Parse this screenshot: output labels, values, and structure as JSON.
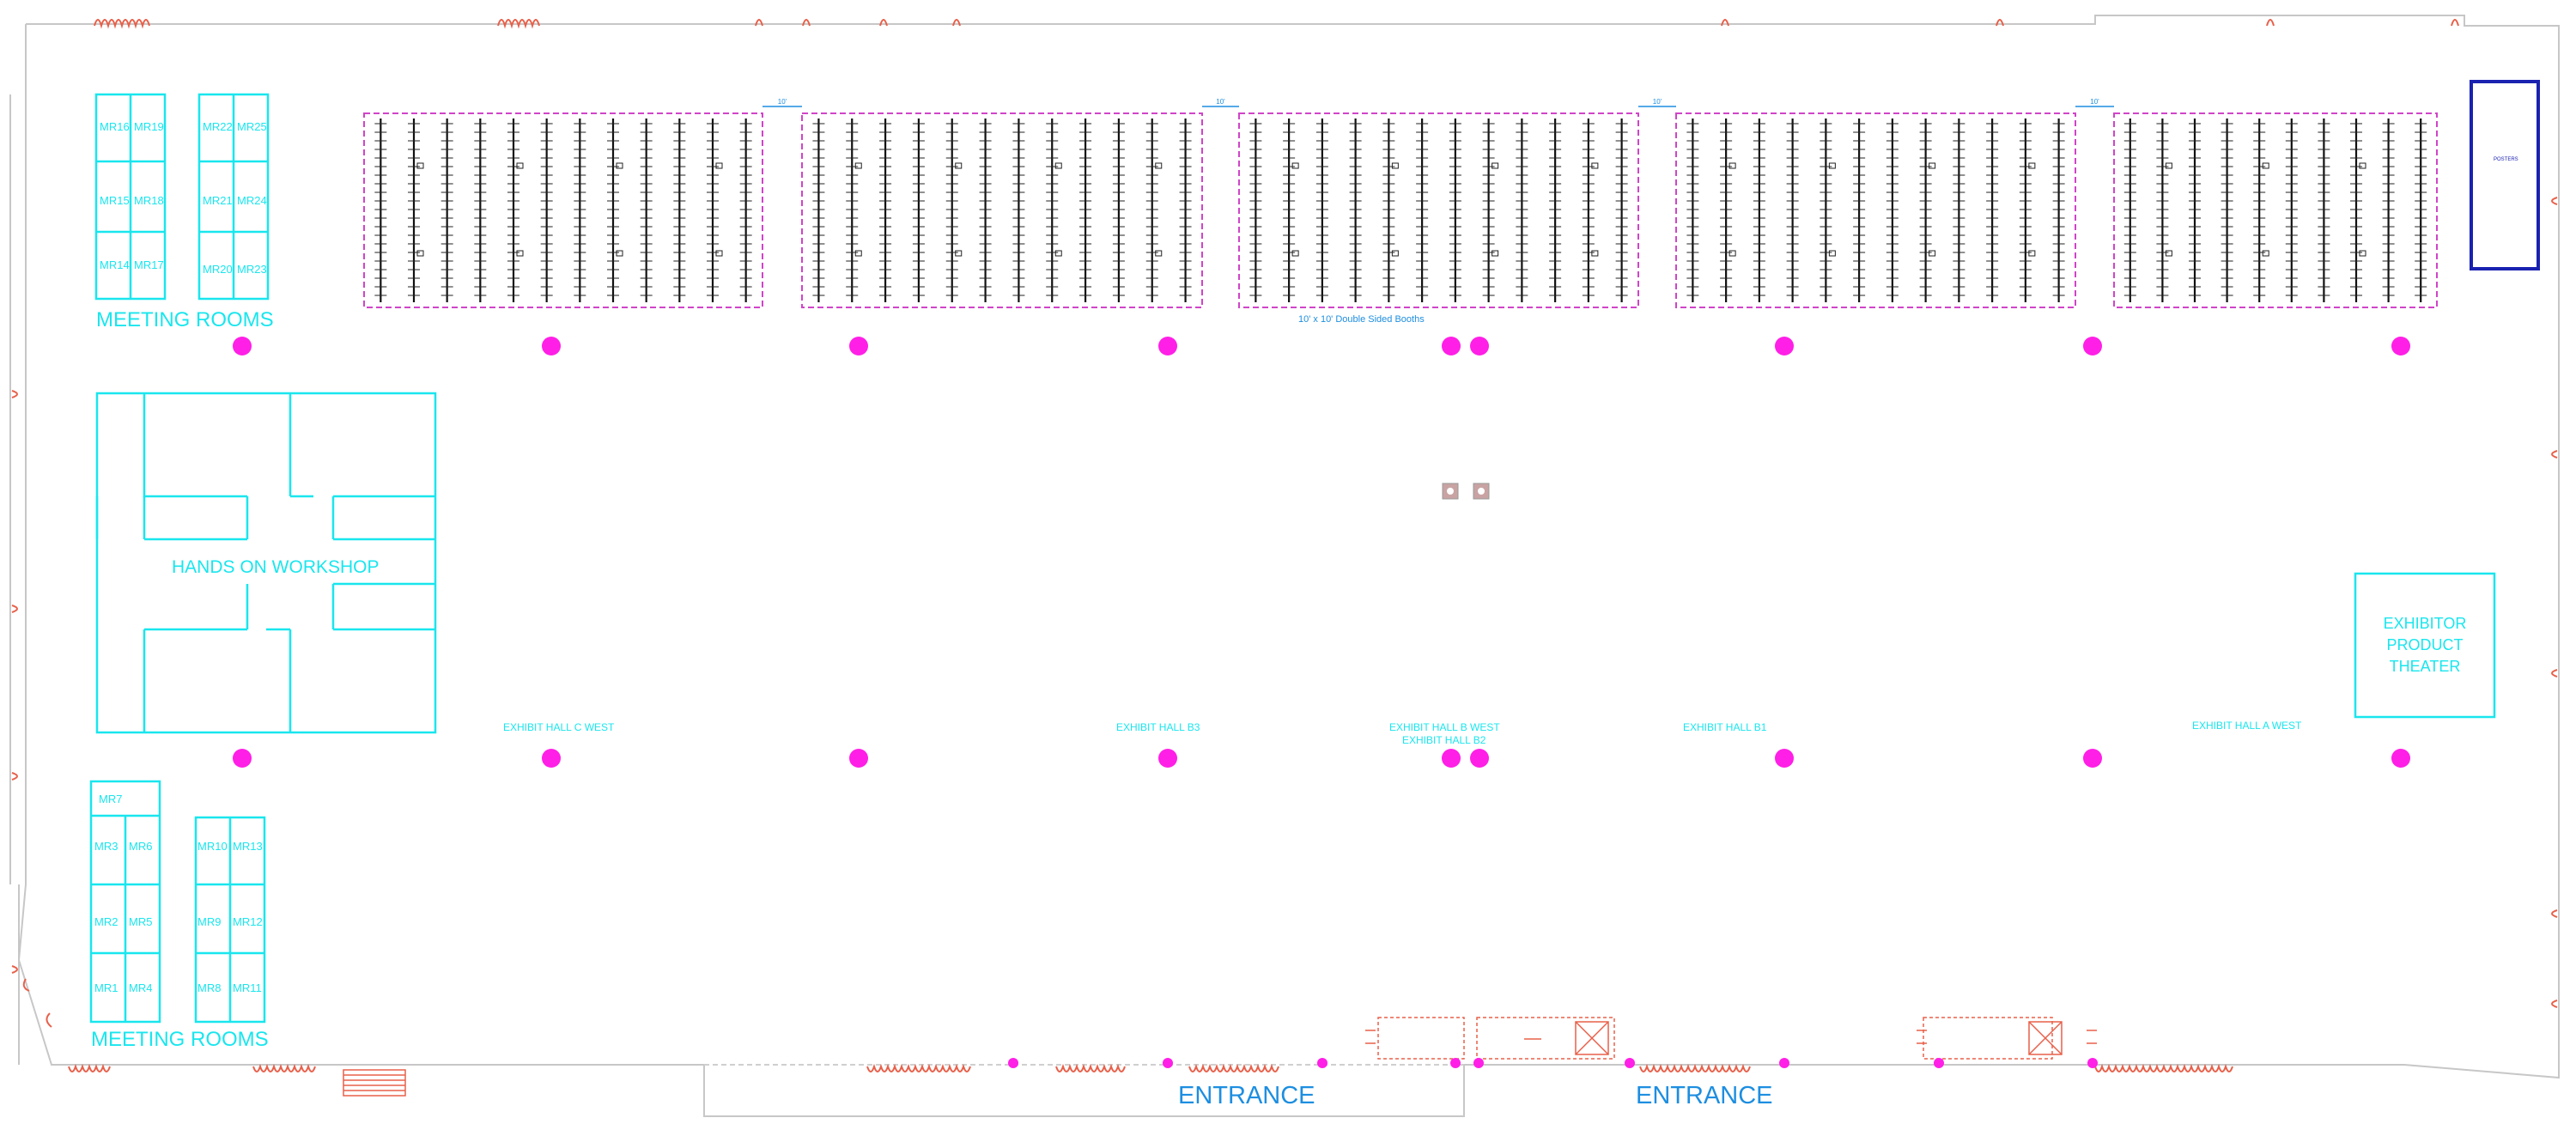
{
  "colors": {
    "cyan": "#19e6ee",
    "magenta": "#ff1fe6",
    "entrance_blue": "#1d8ee0",
    "navy": "#1a22b0",
    "door_red": "#e8604a",
    "wall_gray": "#c7c7c7"
  },
  "labels": {
    "meeting_rooms_top": "MEETING ROOMS",
    "meeting_rooms_bottom": "MEETING ROOMS",
    "hands_on_workshop": "HANDS ON WORKSHOP",
    "exhibitor_theater": [
      "EXHIBITOR",
      "PRODUCT",
      "THEATER"
    ],
    "entrance_left": "ENTRANCE",
    "entrance_right": "ENTRANCE",
    "navy_box_label": "POSTERS"
  },
  "halls": [
    "EXHIBIT HALL C WEST",
    "EXHIBIT HALL B3",
    "EXHIBIT HALL B WEST",
    "EXHIBIT HALL B2",
    "EXHIBIT HALL B1",
    "EXHIBIT HALL A WEST"
  ],
  "meeting_rooms_top": {
    "group1": [
      "MR16",
      "MR19",
      "MR15",
      "MR18",
      "MR14",
      "MR17"
    ],
    "group2": [
      "MR22",
      "MR25",
      "MR21",
      "MR24",
      "MR20",
      "MR23"
    ]
  },
  "meeting_rooms_bottom": {
    "group1": [
      "MR7",
      "MR3",
      "MR6",
      "MR2",
      "MR5",
      "MR1",
      "MR4"
    ],
    "group2": [
      "MR10",
      "MR13",
      "MR9",
      "MR12",
      "MR8",
      "MR11"
    ]
  },
  "booth_blocks": 5,
  "poster_rows_per_block": 12,
  "booth_block_dimension_labels": [
    "10'",
    "10'",
    "10'",
    "10'"
  ],
  "aisle_note": "10' x 10' Double Sided Booths"
}
